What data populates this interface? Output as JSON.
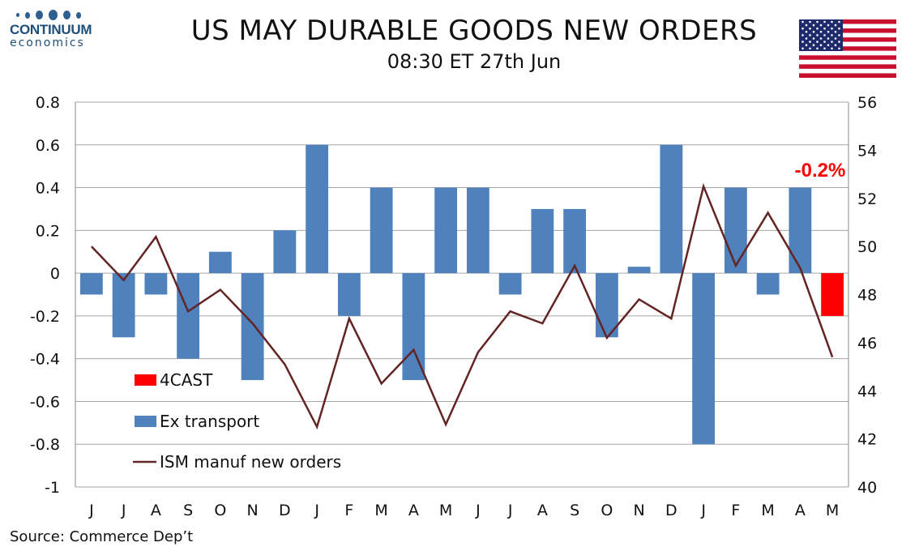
{
  "logo": {
    "name": "CONTINUUM",
    "sub": "economics"
  },
  "header": {
    "title": "US MAY DURABLE GOODS NEW ORDERS",
    "subtitle": "08:30 ET 27th Jun"
  },
  "source": "Source: Commerce Dep’t",
  "colors": {
    "bar": "#4f81bd",
    "forecast": "#ff0000",
    "line": "#632523",
    "grid": "#a6a6a6"
  },
  "chart_data": {
    "type": "bar",
    "categories": [
      "J",
      "J",
      "A",
      "S",
      "O",
      "N",
      "D",
      "J",
      "F",
      "M",
      "A",
      "M",
      "J",
      "J",
      "A",
      "S",
      "O",
      "N",
      "D",
      "J",
      "F",
      "M",
      "A",
      "M"
    ],
    "series": [
      {
        "name": "Ex transport",
        "axis": "left",
        "values": [
          -0.1,
          -0.3,
          -0.1,
          -0.4,
          0.1,
          -0.5,
          0.2,
          0.6,
          -0.2,
          0.4,
          -0.5,
          0.4,
          0.4,
          -0.1,
          0.3,
          0.3,
          -0.3,
          0.03,
          0.6,
          -0.8,
          0.4,
          -0.1,
          0.4,
          null
        ]
      },
      {
        "name": "4CAST",
        "axis": "left",
        "values": [
          null,
          null,
          null,
          null,
          null,
          null,
          null,
          null,
          null,
          null,
          null,
          null,
          null,
          null,
          null,
          null,
          null,
          null,
          null,
          null,
          null,
          null,
          null,
          -0.2
        ]
      },
      {
        "name": "ISM manuf new orders",
        "axis": "right",
        "type": "line",
        "values": [
          50.0,
          48.6,
          50.4,
          47.3,
          48.2,
          46.8,
          45.1,
          42.5,
          47.0,
          44.3,
          45.7,
          42.6,
          45.6,
          47.3,
          46.8,
          49.2,
          46.2,
          47.8,
          47.0,
          52.5,
          49.2,
          51.4,
          49.1,
          45.4
        ]
      }
    ],
    "yleft": {
      "min": -1,
      "max": 0.8,
      "ticks": [
        "0.8",
        "0.6",
        "0.4",
        "0.2",
        "0",
        "-0.2",
        "-0.4",
        "-0.6",
        "-0.8",
        "-1"
      ]
    },
    "yright": {
      "min": 40,
      "max": 56,
      "ticks": [
        "56",
        "54",
        "52",
        "50",
        "48",
        "46",
        "44",
        "42",
        "40"
      ]
    },
    "annotation": "-0.2%",
    "legend": [
      "4CAST",
      "Ex transport",
      "ISM manuf new orders"
    ],
    "grid": true
  }
}
